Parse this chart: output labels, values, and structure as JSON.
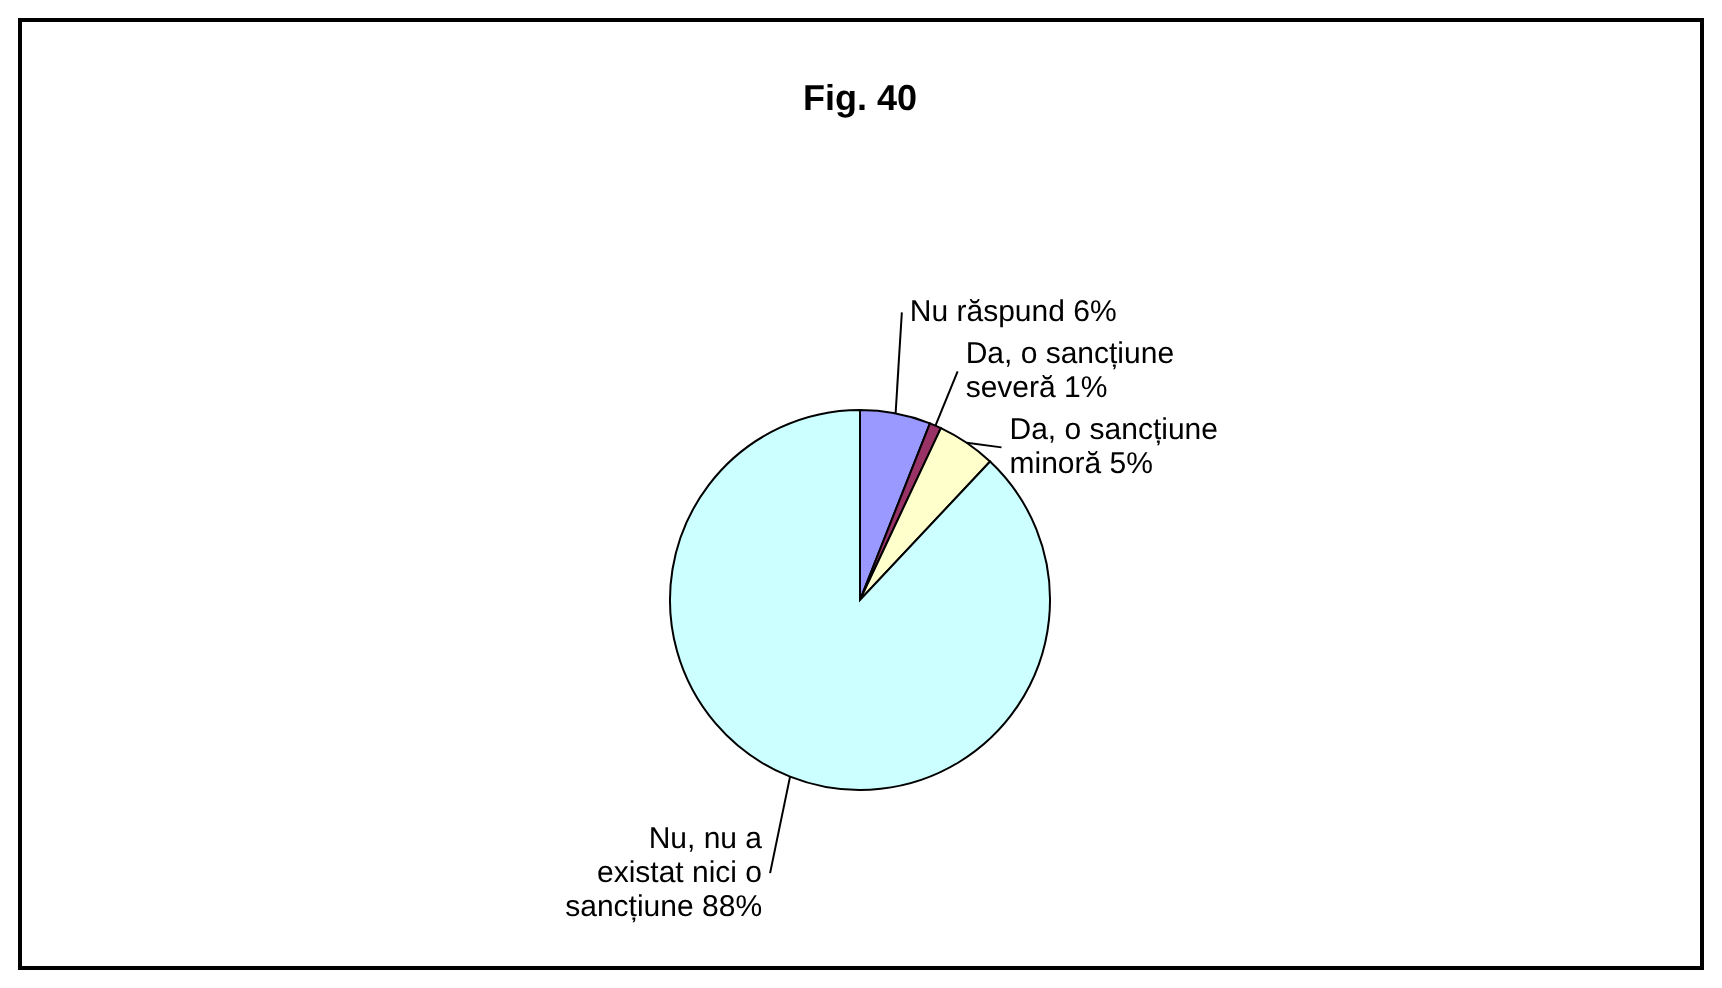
{
  "chart_data": {
    "type": "pie",
    "title": "Fig. 40",
    "categories": [
      "Nu răspund",
      "Da, o sancțiune severă",
      "Da, o sancțiune minoră",
      "Nu, nu a existat nici o sancțiune"
    ],
    "values": [
      6,
      1,
      5,
      88
    ],
    "value_labels": [
      "6%",
      "1%",
      "5%",
      "88%"
    ],
    "colors": [
      "#9999ff",
      "#993366",
      "#ffffcc",
      "#ccffff"
    ]
  }
}
